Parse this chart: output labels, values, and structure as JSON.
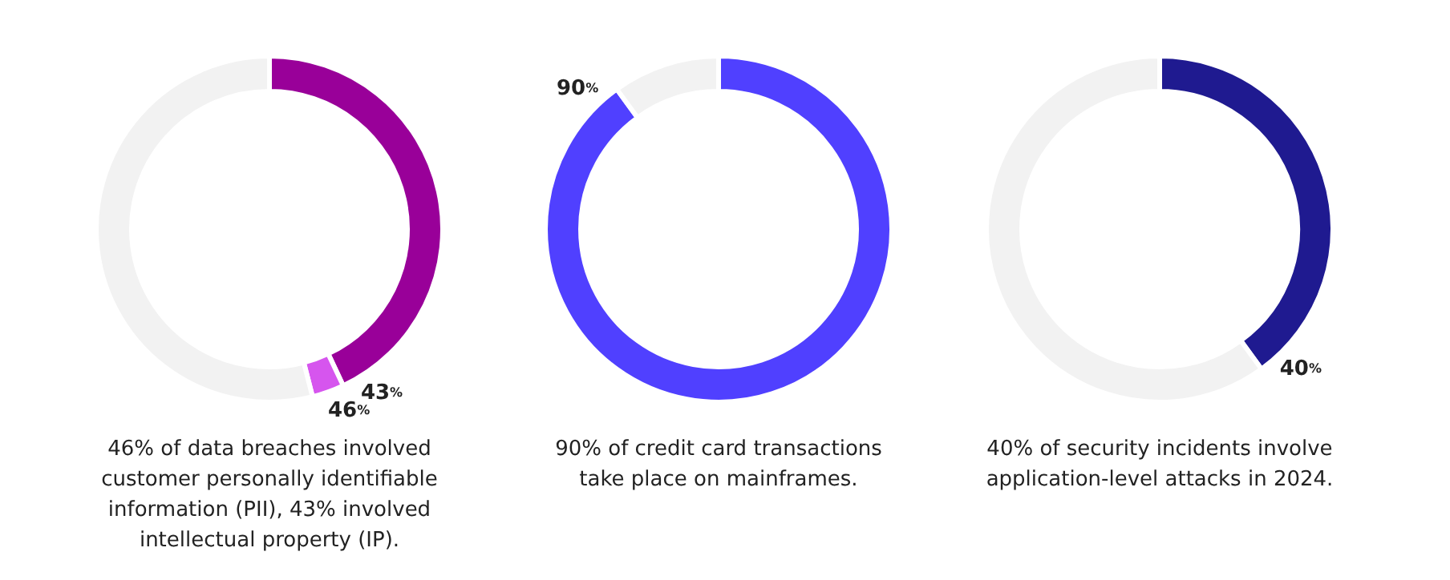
{
  "chart_data": [
    {
      "type": "donut",
      "title": "46% of data breaches involved customer personally identifiable information (PII), 43% involved intellectual property (IP).",
      "categories": [
        null,
        null,
        null
      ],
      "values": [
        43,
        3,
        54
      ],
      "colors": [
        "#990099",
        "#d655ee",
        "#f2f2f2"
      ],
      "annotations": [
        "43%",
        "46%"
      ]
    },
    {
      "type": "donut",
      "title": "90% of credit card transactions take place on mainframes.",
      "categories": [
        null,
        null
      ],
      "values": [
        90,
        10
      ],
      "colors": [
        "#5040ff",
        "#f2f2f2"
      ],
      "value_labels": [
        "90%",
        null
      ]
    },
    {
      "type": "donut",
      "title": "40% of security incidents involve application-level attacks in 2024.",
      "categories": [
        null,
        null
      ],
      "values": [
        40,
        60
      ],
      "colors": [
        "#1f1a90",
        "#f2f2f2"
      ],
      "value_labels": [
        "40%",
        null
      ]
    }
  ]
}
